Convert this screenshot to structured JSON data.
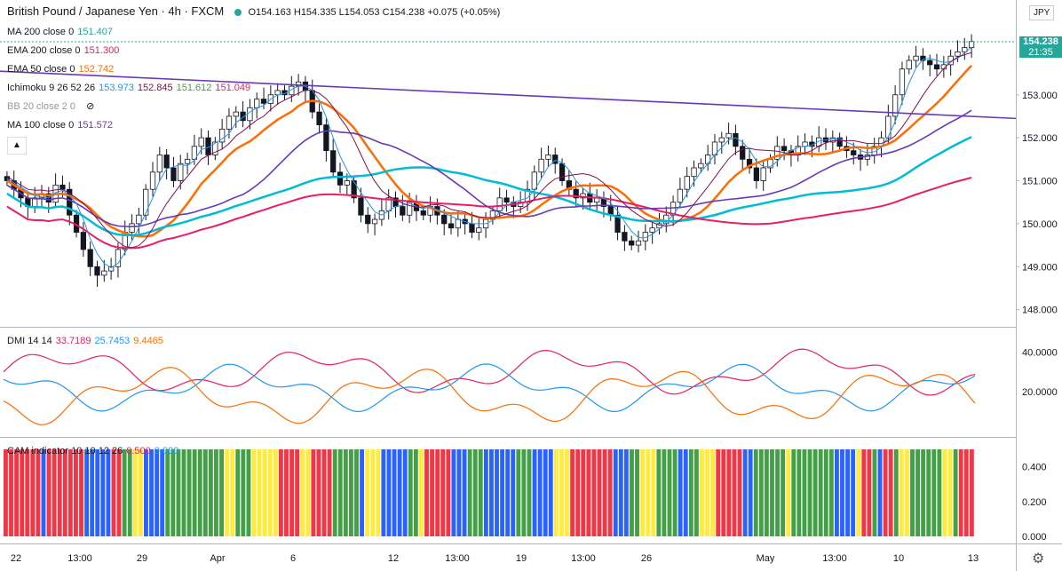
{
  "header": {
    "symbol": "British Pound / Japanese Yen · 4h · FXCM",
    "ohlc": "O154.163 H154.335 L154.053 C154.238 +0.075 (+0.05%)"
  },
  "indicators": [
    {
      "name": "MA 200 close 0",
      "values": [
        "151.407"
      ],
      "colors": [
        "#26a69a"
      ]
    },
    {
      "name": "EMA 200 close 0",
      "values": [
        "151.300"
      ],
      "colors": [
        "#e91e63"
      ]
    },
    {
      "name": "EMA 50 close 0",
      "values": [
        "152.742"
      ],
      "colors": [
        "#ff6d00"
      ]
    },
    {
      "name": "Ichimoku 9 26 52 26",
      "values": [
        "153.973",
        "152.845",
        "151.612",
        "151.049"
      ],
      "colors": [
        "#2196f3",
        "#880e4f",
        "#43a047",
        "#e91e63"
      ]
    },
    {
      "name": "BB 20 close 2 0",
      "values": [],
      "colors": []
    },
    {
      "name": "MA 100 close 0",
      "values": [
        "151.572"
      ],
      "colors": [
        "#673ab7"
      ]
    }
  ],
  "dmi": {
    "name": "DMI 14 14",
    "values": [
      "33.7189",
      "25.7453",
      "9.4465"
    ],
    "colors": [
      "#e91e63",
      "#2196f3",
      "#ff6d00"
    ]
  },
  "cam": {
    "name": "CAM indicator 10 10 12 26",
    "values": [
      "0.500",
      "0.000"
    ],
    "colors": [
      "#e91e63",
      "#2196f3"
    ]
  },
  "price_box": {
    "price": "154.238",
    "timer": "21:35"
  },
  "currency": "JPY",
  "icons": {
    "collapse": "chevron-up-icon",
    "settings": "gear-icon",
    "visibility": "eye-off-icon"
  },
  "chart_data": {
    "type": "candlestick",
    "price_axis_ticks": [
      "148.000",
      "149.000",
      "150.000",
      "151.000",
      "152.000",
      "153.000"
    ],
    "price_ylim": [
      147.6,
      155.0
    ],
    "dmi_axis_ticks": [
      "20.0000",
      "40.0000"
    ],
    "cam_axis_ticks": [
      "0.000",
      "0.200",
      "0.400"
    ],
    "x_ticks": [
      "22",
      "13:00",
      "29",
      "Apr",
      "6",
      "12",
      "13:00",
      "19",
      "13:00",
      "26",
      "May",
      "13:00",
      "10",
      "13"
    ],
    "candles_close": [
      151.0,
      150.8,
      150.6,
      150.4,
      150.6,
      150.7,
      150.5,
      150.9,
      150.8,
      150.2,
      149.8,
      149.4,
      149.0,
      148.8,
      148.9,
      149.0,
      149.4,
      149.8,
      150.0,
      150.2,
      150.8,
      151.2,
      151.6,
      151.3,
      151.0,
      151.4,
      151.5,
      151.8,
      152.0,
      151.6,
      151.9,
      152.2,
      152.5,
      152.6,
      152.4,
      152.7,
      152.9,
      152.8,
      153.0,
      153.1,
      153.0,
      153.2,
      153.3,
      153.1,
      152.6,
      152.3,
      151.7,
      151.2,
      150.9,
      151.0,
      150.6,
      150.2,
      150.0,
      150.1,
      150.3,
      150.6,
      150.4,
      150.2,
      150.5,
      150.3,
      150.2,
      150.4,
      150.2,
      150.0,
      149.9,
      150.1,
      150.0,
      149.8,
      149.9,
      150.1,
      150.3,
      150.6,
      150.5,
      150.4,
      150.5,
      150.8,
      151.2,
      151.5,
      151.6,
      151.4,
      151.0,
      150.8,
      150.6,
      150.7,
      150.5,
      150.6,
      150.4,
      150.2,
      149.8,
      149.6,
      149.5,
      149.6,
      149.8,
      149.9,
      150.0,
      150.2,
      150.5,
      150.8,
      151.1,
      151.3,
      151.4,
      151.6,
      151.9,
      152.0,
      152.1,
      151.8,
      151.5,
      151.3,
      151.0,
      151.3,
      151.5,
      151.8,
      151.7,
      151.6,
      151.8,
      151.9,
      151.8,
      152.0,
      151.9,
      152.0,
      151.8,
      151.7,
      151.6,
      151.5,
      151.6,
      151.8,
      152.0,
      152.5,
      153.0,
      153.6,
      153.8,
      153.9,
      153.8,
      153.7,
      153.6,
      153.7,
      153.9,
      154.0,
      154.1,
      154.24
    ],
    "lines": {
      "ma200": "151.407",
      "ema200": "151.300",
      "ema50": "152.742",
      "ma100": "151.572"
    },
    "cam_colors": [
      "red",
      "red",
      "red",
      "red",
      "red",
      "red",
      "red",
      "blue",
      "red",
      "red",
      "red",
      "red",
      "red",
      "red",
      "red",
      "blue",
      "blue",
      "blue",
      "blue",
      "blue",
      "red",
      "red",
      "green",
      "green",
      "yellow",
      "yellow",
      "blue",
      "blue",
      "blue",
      "blue",
      "green",
      "green",
      "green",
      "green",
      "green",
      "green",
      "green",
      "green",
      "green",
      "green",
      "green",
      "yellow",
      "yellow",
      "green",
      "green",
      "green",
      "yellow",
      "yellow",
      "yellow",
      "yellow",
      "yellow",
      "red",
      "red",
      "red",
      "red",
      "yellow",
      "yellow",
      "red",
      "red",
      "red",
      "red",
      "green",
      "green",
      "green",
      "green",
      "green",
      "blue",
      "yellow",
      "yellow",
      "yellow",
      "blue",
      "blue",
      "blue",
      "blue",
      "blue",
      "green",
      "green",
      "yellow",
      "red",
      "red",
      "red",
      "red",
      "red",
      "blue",
      "blue",
      "blue",
      "green",
      "green",
      "green",
      "blue",
      "blue",
      "blue",
      "blue",
      "blue",
      "blue",
      "green",
      "green",
      "green",
      "blue",
      "blue",
      "blue",
      "blue",
      "yellow",
      "yellow",
      "yellow",
      "red",
      "red",
      "red",
      "red",
      "red",
      "red",
      "red",
      "red",
      "blue",
      "blue",
      "blue",
      "green",
      "green",
      "yellow",
      "yellow",
      "yellow",
      "green",
      "green",
      "green",
      "green",
      "blue",
      "blue",
      "green",
      "green",
      "yellow",
      "yellow",
      "yellow",
      "red",
      "red",
      "red",
      "red",
      "red",
      "blue",
      "blue",
      "green",
      "green",
      "green",
      "green",
      "green",
      "green",
      "yellow",
      "green",
      "green",
      "green",
      "green",
      "green",
      "green",
      "green",
      "green",
      "blue",
      "blue",
      "blue",
      "blue",
      "yellow",
      "red",
      "red",
      "green",
      "blue",
      "red",
      "red",
      "green",
      "yellow",
      "yellow",
      "green",
      "green",
      "green",
      "green",
      "green",
      "green",
      "yellow",
      "yellow",
      "green",
      "red",
      "red",
      "red"
    ]
  }
}
